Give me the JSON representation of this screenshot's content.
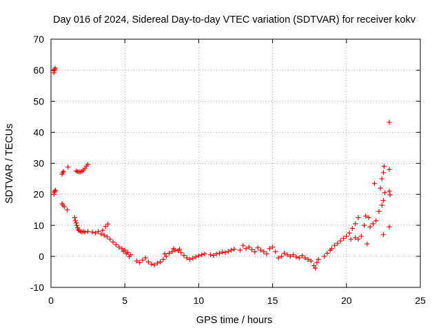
{
  "chart_data": {
    "type": "scatter",
    "title": "Day 016 of 2024, Sidereal Day-to-day VTEC variation (SDTVAR) for receiver kokv",
    "xlabel": "GPS time / hours",
    "ylabel": "SDTVAR / TECUs",
    "xlim": [
      0,
      25
    ],
    "ylim": [
      -10,
      70
    ],
    "xticks": [
      0,
      5,
      10,
      15,
      20,
      25
    ],
    "yticks": [
      -10,
      0,
      10,
      20,
      30,
      40,
      50,
      60,
      70
    ],
    "grid": true,
    "marker": "+",
    "color": "#ff0000",
    "series": [
      {
        "name": "SDTVAR",
        "points": [
          [
            0.2,
            59.2
          ],
          [
            0.22,
            59.8
          ],
          [
            0.25,
            60.3
          ],
          [
            0.28,
            60.7
          ],
          [
            0.2,
            20.0
          ],
          [
            0.22,
            20.6
          ],
          [
            0.25,
            21.0
          ],
          [
            0.3,
            21.3
          ],
          [
            0.75,
            26.5
          ],
          [
            0.8,
            27.0
          ],
          [
            0.85,
            27.4
          ],
          [
            1.15,
            28.8
          ],
          [
            0.75,
            17.0
          ],
          [
            0.8,
            16.5
          ],
          [
            0.9,
            16.0
          ],
          [
            1.1,
            15.0
          ],
          [
            1.7,
            27.5
          ],
          [
            1.8,
            27.3
          ],
          [
            1.9,
            27.2
          ],
          [
            2.0,
            27.2
          ],
          [
            2.1,
            27.4
          ],
          [
            2.2,
            27.8
          ],
          [
            2.3,
            28.4
          ],
          [
            2.4,
            29.1
          ],
          [
            2.5,
            29.6
          ],
          [
            1.6,
            12.5
          ],
          [
            1.65,
            11.5
          ],
          [
            1.7,
            10.8
          ],
          [
            1.75,
            10.0
          ],
          [
            1.8,
            9.2
          ],
          [
            1.85,
            8.6
          ],
          [
            1.9,
            8.3
          ],
          [
            2.0,
            8.0
          ],
          [
            2.1,
            7.8
          ],
          [
            2.2,
            8.0
          ],
          [
            2.3,
            7.8
          ],
          [
            2.5,
            8.0
          ],
          [
            2.8,
            7.8
          ],
          [
            3.0,
            7.5
          ],
          [
            3.2,
            8.0
          ],
          [
            3.5,
            8.4
          ],
          [
            3.7,
            9.6
          ],
          [
            3.85,
            10.4
          ],
          [
            3.4,
            7.2
          ],
          [
            3.6,
            6.8
          ],
          [
            3.8,
            6.3
          ],
          [
            4.0,
            5.5
          ],
          [
            4.2,
            4.6
          ],
          [
            4.4,
            3.8
          ],
          [
            4.6,
            3.0
          ],
          [
            4.8,
            2.5
          ],
          [
            5.0,
            2.0
          ],
          [
            5.2,
            1.2
          ],
          [
            5.4,
            0.5
          ],
          [
            4.9,
            1.6
          ],
          [
            5.1,
            0.9
          ],
          [
            5.3,
            -0.1
          ],
          [
            5.8,
            -1.5
          ],
          [
            6.0,
            -2.0
          ],
          [
            6.2,
            -1.2
          ],
          [
            6.4,
            -0.5
          ],
          [
            6.6,
            -1.8
          ],
          [
            6.8,
            -2.5
          ],
          [
            7.0,
            -2.8
          ],
          [
            7.2,
            -2.2
          ],
          [
            7.4,
            -1.8
          ],
          [
            7.6,
            -1.0
          ],
          [
            7.8,
            0.0
          ],
          [
            8.0,
            1.0
          ],
          [
            8.2,
            1.5
          ],
          [
            8.4,
            2.0
          ],
          [
            8.6,
            1.8
          ],
          [
            8.8,
            1.2
          ],
          [
            9.0,
            0.3
          ],
          [
            7.7,
            0.8
          ],
          [
            8.3,
            2.5
          ],
          [
            8.7,
            2.3
          ],
          [
            9.2,
            -0.5
          ],
          [
            9.4,
            -1.0
          ],
          [
            9.6,
            -0.6
          ],
          [
            9.8,
            -0.2
          ],
          [
            10.0,
            0.2
          ],
          [
            10.2,
            0.5
          ],
          [
            10.4,
            0.8
          ],
          [
            10.8,
            0.5
          ],
          [
            11.0,
            0.3
          ],
          [
            11.2,
            0.8
          ],
          [
            11.4,
            1.0
          ],
          [
            11.6,
            1.4
          ],
          [
            11.8,
            1.2
          ],
          [
            12.0,
            1.6
          ],
          [
            12.2,
            2.0
          ],
          [
            12.4,
            2.3
          ],
          [
            12.8,
            2.0
          ],
          [
            13.0,
            3.5
          ],
          [
            13.2,
            2.5
          ],
          [
            13.4,
            3.0
          ],
          [
            13.6,
            2.2
          ],
          [
            13.8,
            1.5
          ],
          [
            14.0,
            2.8
          ],
          [
            14.2,
            2.0
          ],
          [
            14.4,
            1.5
          ],
          [
            14.6,
            0.8
          ],
          [
            14.8,
            2.5
          ],
          [
            15.0,
            3.0
          ],
          [
            15.2,
            1.5
          ],
          [
            15.4,
            -0.5
          ],
          [
            15.6,
            0.0
          ],
          [
            15.8,
            1.0
          ],
          [
            16.0,
            0.5
          ],
          [
            16.2,
            0.0
          ],
          [
            16.4,
            0.5
          ],
          [
            16.6,
            -0.2
          ],
          [
            16.8,
            -0.5
          ],
          [
            17.0,
            0.2
          ],
          [
            17.2,
            -0.5
          ],
          [
            17.4,
            -1.0
          ],
          [
            17.6,
            -1.5
          ],
          [
            17.8,
            -3.0
          ],
          [
            17.9,
            -3.8
          ],
          [
            18.0,
            -2.0
          ],
          [
            18.1,
            -1.0
          ],
          [
            18.5,
            0.0
          ],
          [
            18.7,
            1.0
          ],
          [
            18.9,
            2.0
          ],
          [
            19.0,
            2.5
          ],
          [
            19.2,
            3.5
          ],
          [
            19.4,
            4.2
          ],
          [
            19.6,
            5.0
          ],
          [
            19.8,
            5.8
          ],
          [
            20.0,
            6.5
          ],
          [
            20.2,
            7.5
          ],
          [
            20.4,
            9.0
          ],
          [
            20.6,
            10.5
          ],
          [
            20.8,
            12.5
          ],
          [
            20.3,
            5.5
          ],
          [
            20.6,
            6.0
          ],
          [
            20.8,
            5.5
          ],
          [
            21.0,
            6.5
          ],
          [
            21.2,
            10.0
          ],
          [
            21.4,
            4.0
          ],
          [
            21.6,
            9.5
          ],
          [
            21.8,
            10.5
          ],
          [
            22.0,
            11.5
          ],
          [
            21.5,
            12.5
          ],
          [
            21.3,
            13.0
          ],
          [
            21.9,
            23.5
          ],
          [
            22.2,
            14.5
          ],
          [
            22.4,
            16.5
          ],
          [
            22.5,
            18.0
          ],
          [
            22.3,
            22.0
          ],
          [
            22.4,
            25.0
          ],
          [
            22.5,
            27.0
          ],
          [
            22.55,
            29.0
          ],
          [
            22.6,
            20.5
          ],
          [
            22.9,
            28.0
          ],
          [
            22.9,
            21.0
          ],
          [
            22.95,
            19.8
          ],
          [
            22.5,
            7.0
          ],
          [
            22.9,
            9.5
          ],
          [
            22.9,
            43.2
          ]
        ]
      }
    ]
  }
}
